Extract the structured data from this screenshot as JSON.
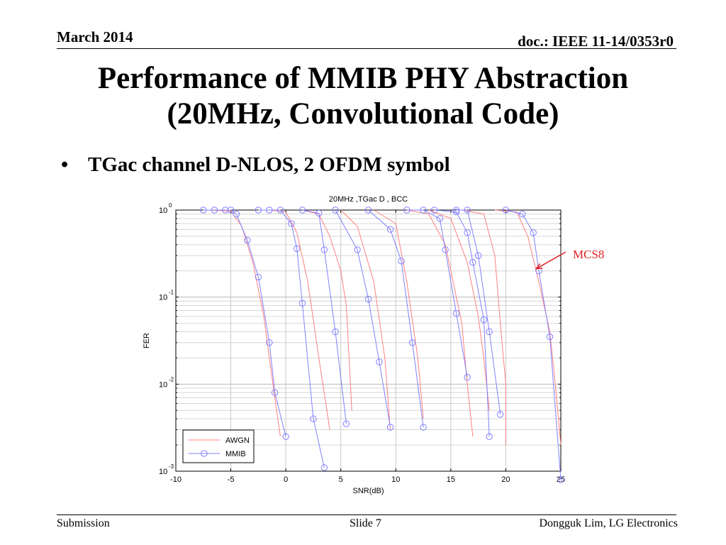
{
  "header": {
    "date": "March 2014",
    "doc": "doc.: IEEE 11-14/0353r0"
  },
  "slide": {
    "title_line1": "Performance of MMIB PHY Abstraction",
    "title_line2": "(20MHz, Convolutional Code)",
    "bullet_symbol": "•",
    "bullet_text": "TGac channel D-NLOS, 2 OFDM symbol"
  },
  "annotation": {
    "text": "MCS8",
    "color": "#e02020",
    "target_snr": 22.5,
    "target_fer": 0.2
  },
  "footer": {
    "left": "Submission",
    "center": "Slide 7",
    "right": "Dongguk Lim, LG Electronics"
  },
  "chart_data": {
    "type": "line",
    "title": "20MHz ,TGac D , BCC",
    "xlabel": "SNR(dB)",
    "ylabel": "FER",
    "xlim": [
      -10,
      25
    ],
    "ylim": [
      0.001,
      1
    ],
    "y_scale": "log",
    "x_ticks": [
      "-10",
      "-5",
      "0",
      "5",
      "10",
      "15",
      "20",
      "25"
    ],
    "y_ticks": [
      {
        "value": 1,
        "base": "10",
        "exp": "0"
      },
      {
        "value": 0.1,
        "base": "10",
        "exp": "-1"
      },
      {
        "value": 0.01,
        "base": "10",
        "exp": "-2"
      },
      {
        "value": 0.001,
        "base": "10",
        "exp": "-3"
      }
    ],
    "grid": true,
    "legend_position": "bottom-left",
    "series": [
      {
        "name": "AWGN",
        "color": "#ff8080",
        "style": "line"
      },
      {
        "name": "MMIB",
        "color": "#8080ff",
        "style": "line-circle"
      }
    ],
    "curves": [
      {
        "awgn": [
          [
            -7,
            1
          ],
          [
            -5,
            0.97
          ],
          [
            -4,
            0.65
          ],
          [
            -3,
            0.25
          ],
          [
            -2,
            0.06
          ],
          [
            -1.5,
            0.02
          ],
          [
            -1,
            0.007
          ],
          [
            -0.5,
            0.0025
          ]
        ],
        "mmib": [
          [
            -7.5,
            1
          ],
          [
            -6.5,
            1
          ],
          [
            -5.5,
            1
          ],
          [
            -5,
            1
          ],
          [
            -4.5,
            0.9
          ],
          [
            -3.5,
            0.45
          ],
          [
            -2.5,
            0.17
          ],
          [
            -1.5,
            0.03
          ],
          [
            -1,
            0.008
          ],
          [
            0,
            0.0025
          ]
        ]
      },
      {
        "awgn": [
          [
            -1.5,
            1
          ],
          [
            0,
            0.95
          ],
          [
            1,
            0.55
          ],
          [
            2,
            0.15
          ],
          [
            3,
            0.02
          ],
          [
            4,
            0.003
          ]
        ],
        "mmib": [
          [
            -2.5,
            1
          ],
          [
            -1.5,
            1
          ],
          [
            -0.5,
            1
          ],
          [
            0.5,
            0.7
          ],
          [
            1,
            0.36
          ],
          [
            1.5,
            0.085
          ],
          [
            2.5,
            0.004
          ],
          [
            3.5,
            0.0011
          ]
        ]
      },
      {
        "awgn": [
          [
            1.5,
            1
          ],
          [
            3,
            0.9
          ],
          [
            4,
            0.5
          ],
          [
            5,
            0.2
          ],
          [
            5.5,
            0.08
          ],
          [
            6,
            0.005
          ]
        ],
        "mmib": [
          [
            1.5,
            1
          ],
          [
            3,
            0.92
          ],
          [
            3.5,
            0.35
          ],
          [
            4.5,
            0.04
          ],
          [
            5.5,
            0.0035
          ]
        ]
      },
      {
        "awgn": [
          [
            5,
            1
          ],
          [
            6.5,
            0.65
          ],
          [
            8,
            0.15
          ],
          [
            9,
            0.02
          ],
          [
            9.5,
            0.003
          ]
        ],
        "mmib": [
          [
            4.5,
            1
          ],
          [
            6.5,
            0.35
          ],
          [
            7.5,
            0.095
          ],
          [
            8.5,
            0.018
          ],
          [
            9.5,
            0.0032
          ]
        ]
      },
      {
        "awgn": [
          [
            8,
            1
          ],
          [
            10,
            0.7
          ],
          [
            11,
            0.15
          ],
          [
            12,
            0.02
          ],
          [
            12.5,
            0.004
          ]
        ],
        "mmib": [
          [
            7.5,
            1
          ],
          [
            9.5,
            0.6
          ],
          [
            10.5,
            0.26
          ],
          [
            11.5,
            0.03
          ],
          [
            12.5,
            0.0032
          ]
        ]
      },
      {
        "awgn": [
          [
            11,
            1
          ],
          [
            13,
            0.9
          ],
          [
            14.5,
            0.4
          ],
          [
            16,
            0.05
          ],
          [
            16.5,
            0.01
          ],
          [
            17,
            0.0025
          ]
        ],
        "mmib": [
          [
            11,
            1
          ],
          [
            12.5,
            1
          ],
          [
            14,
            0.8
          ],
          [
            14.5,
            0.35
          ],
          [
            15.5,
            0.065
          ],
          [
            16.5,
            0.012
          ]
        ]
      },
      {
        "awgn": [
          [
            13,
            1
          ],
          [
            15,
            0.8
          ],
          [
            16.5,
            0.25
          ],
          [
            17.5,
            0.06
          ],
          [
            18,
            0.02
          ],
          [
            18.5,
            0.005
          ]
        ],
        "mmib": [
          [
            13.5,
            1
          ],
          [
            15.5,
            0.95
          ],
          [
            16.5,
            0.55
          ],
          [
            17,
            0.25
          ],
          [
            18,
            0.055
          ],
          [
            18.5,
            0.0025
          ]
        ]
      },
      {
        "awgn": [
          [
            16,
            1
          ],
          [
            18,
            0.9
          ],
          [
            19,
            0.3
          ],
          [
            19.5,
            0.05
          ],
          [
            20,
            0.01
          ],
          [
            20,
            0.002
          ]
        ],
        "mmib": [
          [
            15.5,
            1
          ],
          [
            16.5,
            1
          ],
          [
            17.5,
            0.3
          ],
          [
            18.5,
            0.04
          ],
          [
            19.5,
            0.0045
          ]
        ]
      },
      {
        "awgn": [
          [
            19,
            1
          ],
          [
            21,
            0.95
          ],
          [
            22,
            0.5
          ],
          [
            23,
            0.15
          ],
          [
            24,
            0.04
          ],
          [
            24.5,
            0.01
          ],
          [
            25,
            0.002
          ]
        ],
        "mmib": [
          [
            20,
            1
          ],
          [
            21.5,
            0.9
          ],
          [
            22.5,
            0.55
          ],
          [
            23,
            0.2
          ],
          [
            24,
            0.035
          ],
          [
            25,
            0.0008
          ]
        ]
      }
    ]
  }
}
